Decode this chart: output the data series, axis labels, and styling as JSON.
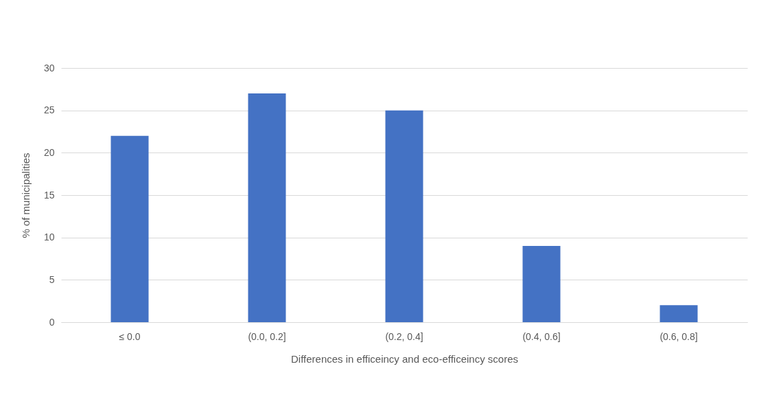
{
  "chart_data": {
    "type": "bar",
    "xlabel": "Differences in efficeincy and eco-efficeincy scores",
    "ylabel": "% of municipalities",
    "categories": [
      "≤ 0.0",
      "(0.0, 0.2]",
      "(0.2, 0.4]",
      "(0.4, 0.6]",
      "(0.6, 0.8]"
    ],
    "values": [
      22,
      27,
      25,
      9,
      2
    ],
    "color": "#4472c4",
    "ylim": [
      0,
      30
    ],
    "yticks": [
      0,
      5,
      10,
      15,
      20,
      25,
      30
    ],
    "grid": "y"
  }
}
